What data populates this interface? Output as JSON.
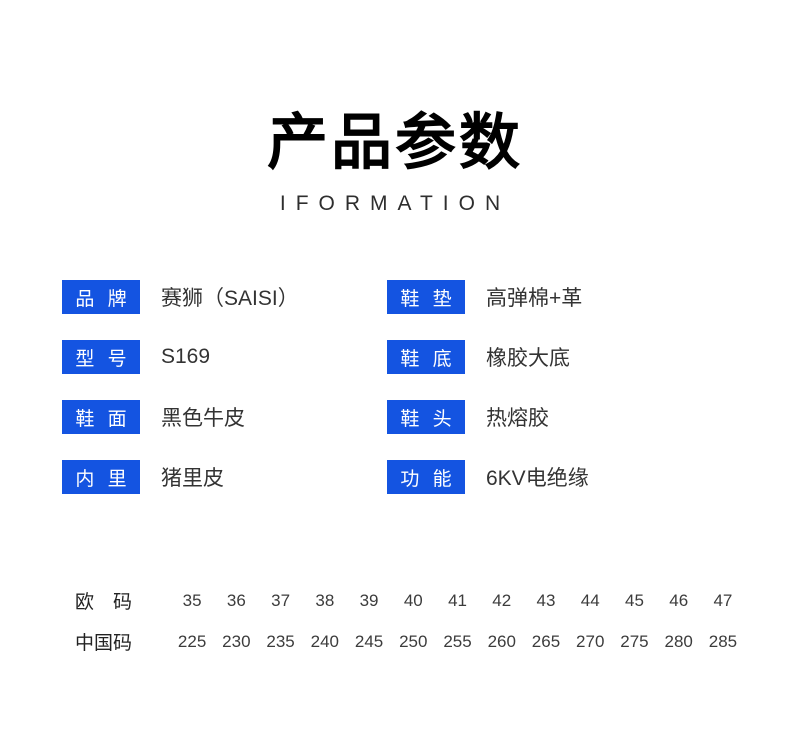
{
  "header": {
    "title": "产品参数",
    "subtitle": "IFORMATION"
  },
  "colors": {
    "badge_blue": "#1454e1",
    "title_black": "#000000",
    "body_text": "#333333"
  },
  "specs": {
    "left": [
      {
        "label": "品 牌",
        "value": "赛狮（SAISI）"
      },
      {
        "label": "型 号",
        "value": "S169"
      },
      {
        "label": "鞋 面",
        "value": "黑色牛皮"
      },
      {
        "label": "内 里",
        "value": "猪里皮"
      }
    ],
    "right": [
      {
        "label": "鞋 垫",
        "value": "高弹棉+革"
      },
      {
        "label": "鞋 底",
        "value": "橡胶大底"
      },
      {
        "label": "鞋 头",
        "value": "热熔胶"
      },
      {
        "label": "功 能",
        "value": "6KV电绝缘"
      }
    ]
  },
  "size_table": {
    "rows": [
      {
        "label": "欧　码",
        "values": [
          "35",
          "36",
          "37",
          "38",
          "39",
          "40",
          "41",
          "42",
          "43",
          "44",
          "45",
          "46",
          "47"
        ]
      },
      {
        "label": "中国码",
        "values": [
          "225",
          "230",
          "235",
          "240",
          "245",
          "250",
          "255",
          "260",
          "265",
          "270",
          "275",
          "280",
          "285"
        ]
      }
    ]
  }
}
